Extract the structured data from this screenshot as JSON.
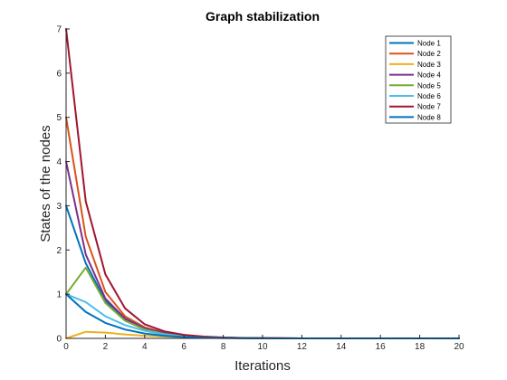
{
  "chart_data": {
    "type": "line",
    "title": "Graph stabilization",
    "xlabel": "Iterations",
    "ylabel": "States of the nodes",
    "xlim": [
      0,
      20
    ],
    "ylim": [
      0,
      7
    ],
    "xticks": [
      0,
      2,
      4,
      6,
      8,
      10,
      12,
      14,
      16,
      18,
      20
    ],
    "yticks": [
      0,
      1,
      2,
      3,
      4,
      5,
      6,
      7
    ],
    "grid": false,
    "legend_position": "top-right",
    "x": [
      0,
      1,
      2,
      3,
      4,
      5,
      6,
      7,
      8,
      9,
      10,
      11,
      12,
      13,
      14,
      15,
      16,
      17,
      18,
      19,
      20
    ],
    "series": [
      {
        "name": "Node 1",
        "color": "#0072BD",
        "values": [
          3.0,
          1.7,
          0.85,
          0.42,
          0.22,
          0.12,
          0.06,
          0.03,
          0.015,
          0.008,
          0.004,
          0.002,
          0.001,
          0,
          0,
          0,
          0,
          0,
          0,
          0,
          0
        ]
      },
      {
        "name": "Node 2",
        "color": "#D95319",
        "values": [
          5.0,
          2.3,
          1.05,
          0.5,
          0.25,
          0.13,
          0.065,
          0.033,
          0.017,
          0.008,
          0.004,
          0.002,
          0.001,
          0,
          0,
          0,
          0,
          0,
          0,
          0,
          0
        ]
      },
      {
        "name": "Node 3",
        "color": "#EDB120",
        "values": [
          0.0,
          0.15,
          0.13,
          0.09,
          0.06,
          0.04,
          0.025,
          0.015,
          0.008,
          0.004,
          0.002,
          0.001,
          0,
          0,
          0,
          0,
          0,
          0,
          0,
          0,
          0
        ]
      },
      {
        "name": "Node 4",
        "color": "#7E2F8E",
        "values": [
          4.0,
          1.9,
          0.9,
          0.45,
          0.23,
          0.12,
          0.06,
          0.03,
          0.015,
          0.008,
          0.004,
          0.002,
          0.001,
          0,
          0,
          0,
          0,
          0,
          0,
          0,
          0
        ]
      },
      {
        "name": "Node 5",
        "color": "#77AC30",
        "values": [
          1.0,
          1.6,
          0.8,
          0.4,
          0.2,
          0.1,
          0.05,
          0.025,
          0.012,
          0.006,
          0.003,
          0.001,
          0,
          0,
          0,
          0,
          0,
          0,
          0,
          0,
          0
        ]
      },
      {
        "name": "Node 6",
        "color": "#4DBEEE",
        "values": [
          1.0,
          0.82,
          0.5,
          0.3,
          0.17,
          0.09,
          0.045,
          0.022,
          0.011,
          0.005,
          0.002,
          0.001,
          0,
          0,
          0,
          0,
          0,
          0,
          0,
          0,
          0
        ]
      },
      {
        "name": "Node 7",
        "color": "#A2142F",
        "values": [
          7.0,
          3.1,
          1.45,
          0.68,
          0.32,
          0.16,
          0.08,
          0.04,
          0.02,
          0.01,
          0.005,
          0.002,
          0.001,
          0,
          0,
          0,
          0,
          0,
          0,
          0,
          0
        ]
      },
      {
        "name": "Node 8",
        "color": "#0072BD",
        "values": [
          1.0,
          0.6,
          0.35,
          0.2,
          0.11,
          0.06,
          0.03,
          0.015,
          0.008,
          0.004,
          0.002,
          0.001,
          0,
          0,
          0,
          0,
          0,
          0,
          0,
          0,
          0
        ]
      }
    ]
  }
}
